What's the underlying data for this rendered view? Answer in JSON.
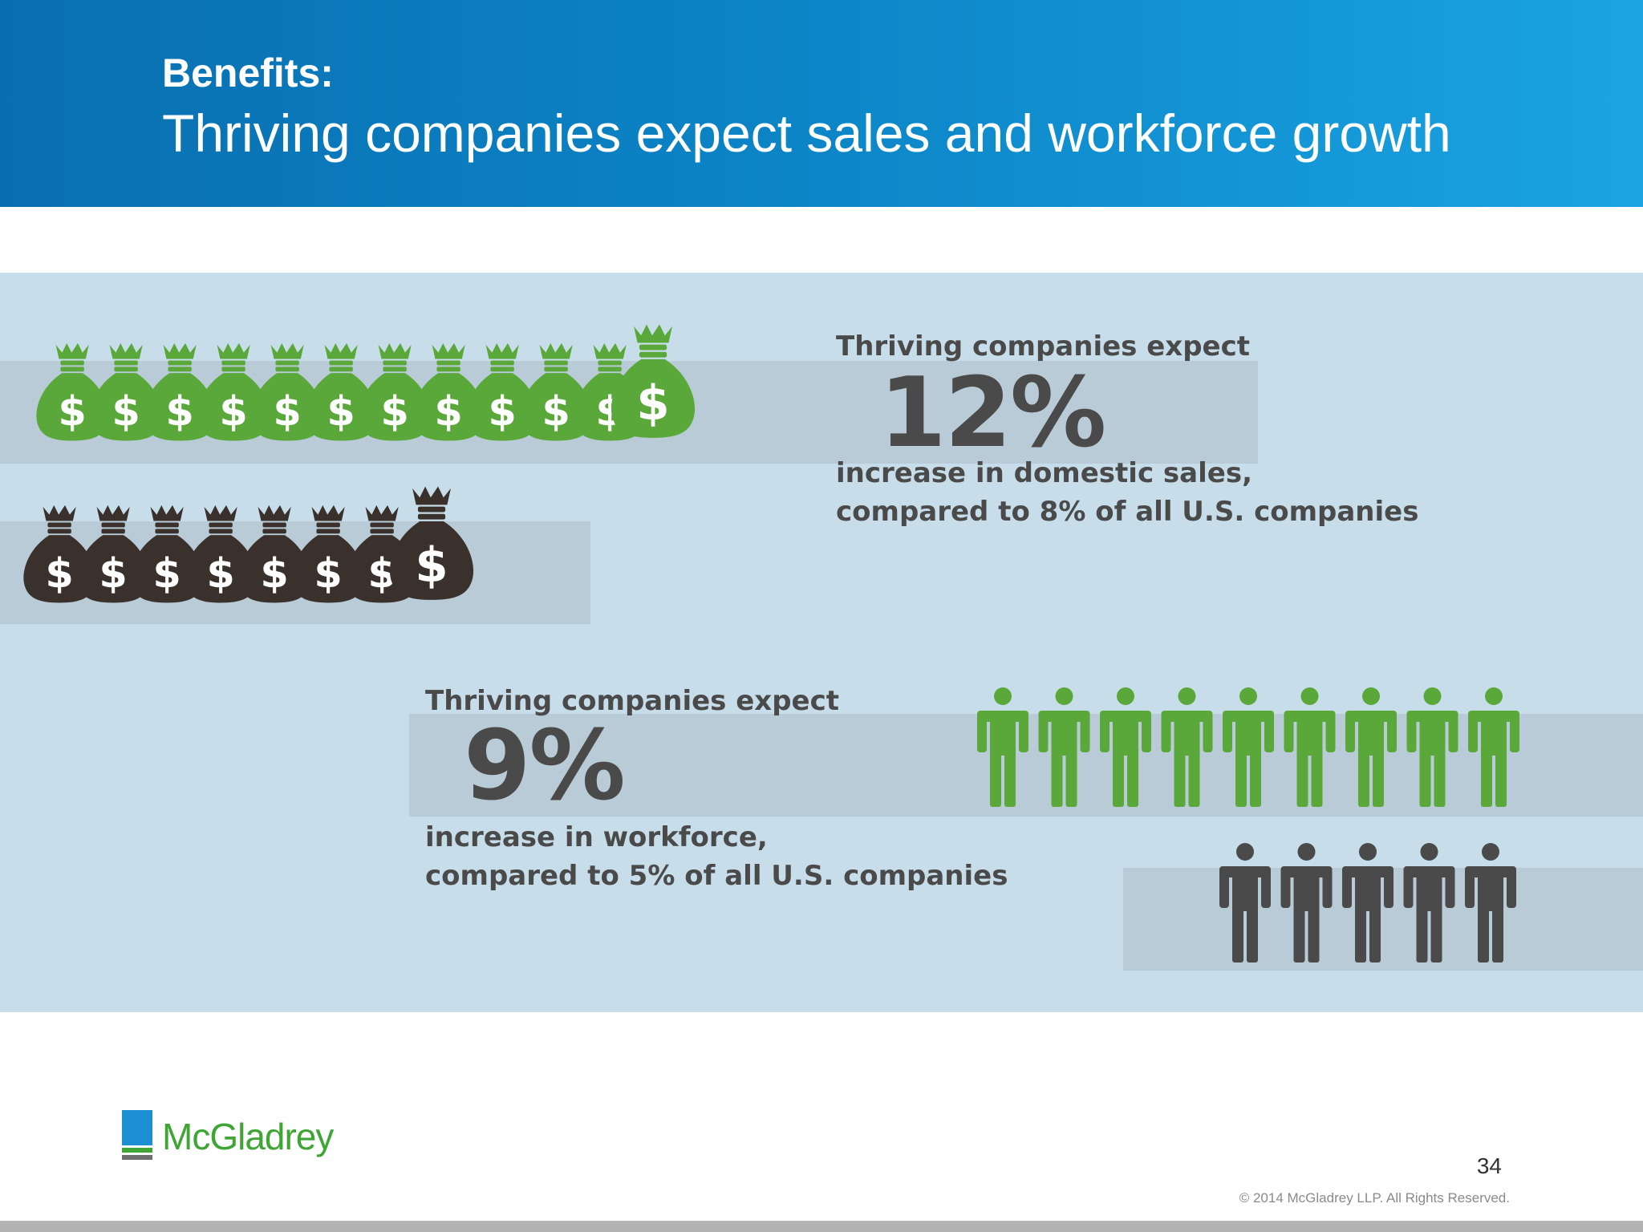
{
  "header": {
    "kicker": "Benefits:",
    "title": "Thriving companies expect sales and workforce growth"
  },
  "sales_stat": {
    "lead": "Thriving companies expect",
    "value": "12%",
    "line1": "increase in domestic sales,",
    "line2": "compared to 8% of all U.S. companies",
    "thriving_bags": 12,
    "all_us_bags": 8
  },
  "workforce_stat": {
    "lead": "Thriving companies expect",
    "value": "9%",
    "line1": "increase in workforce,",
    "line2": "compared to 5% of all U.S. companies",
    "thriving_people": 9,
    "all_us_people": 5
  },
  "colors": {
    "header_start": "#0a6fb0",
    "header_end": "#1aa3e2",
    "panel": "#c7dde9",
    "band": "#b9cbd6",
    "green": "#5aa83a",
    "dark_bag": "#3b312c",
    "dark_person": "#4a4a4a",
    "brand_blue": "#1b8fd1",
    "brand_green": "#3fa535"
  },
  "footer": {
    "brand": "McGladrey",
    "page_number": "34",
    "copyright": "© 2014 McGladrey LLP. All Rights Reserved."
  },
  "icons": {
    "bag": "money-bag-icon",
    "person": "person-icon",
    "logo": "mcgladrey-logo-icon"
  }
}
